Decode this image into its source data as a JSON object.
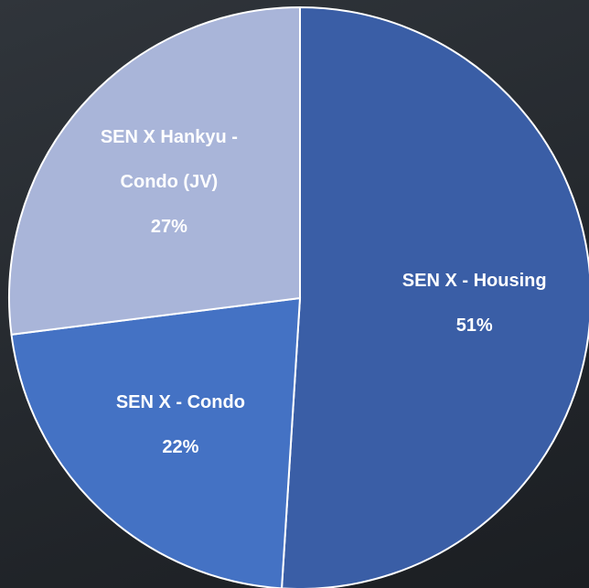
{
  "chart_data": {
    "type": "pie",
    "categories": [
      "SEN X - Housing",
      "SEN X - Condo",
      "SEN X Hankyu - Condo (JV)"
    ],
    "values": [
      51,
      22,
      27
    ],
    "value_labels": [
      "51%",
      "22%",
      "27%"
    ],
    "colors": [
      "#3a5ea6",
      "#4472c4",
      "#a9b5d9"
    ]
  }
}
